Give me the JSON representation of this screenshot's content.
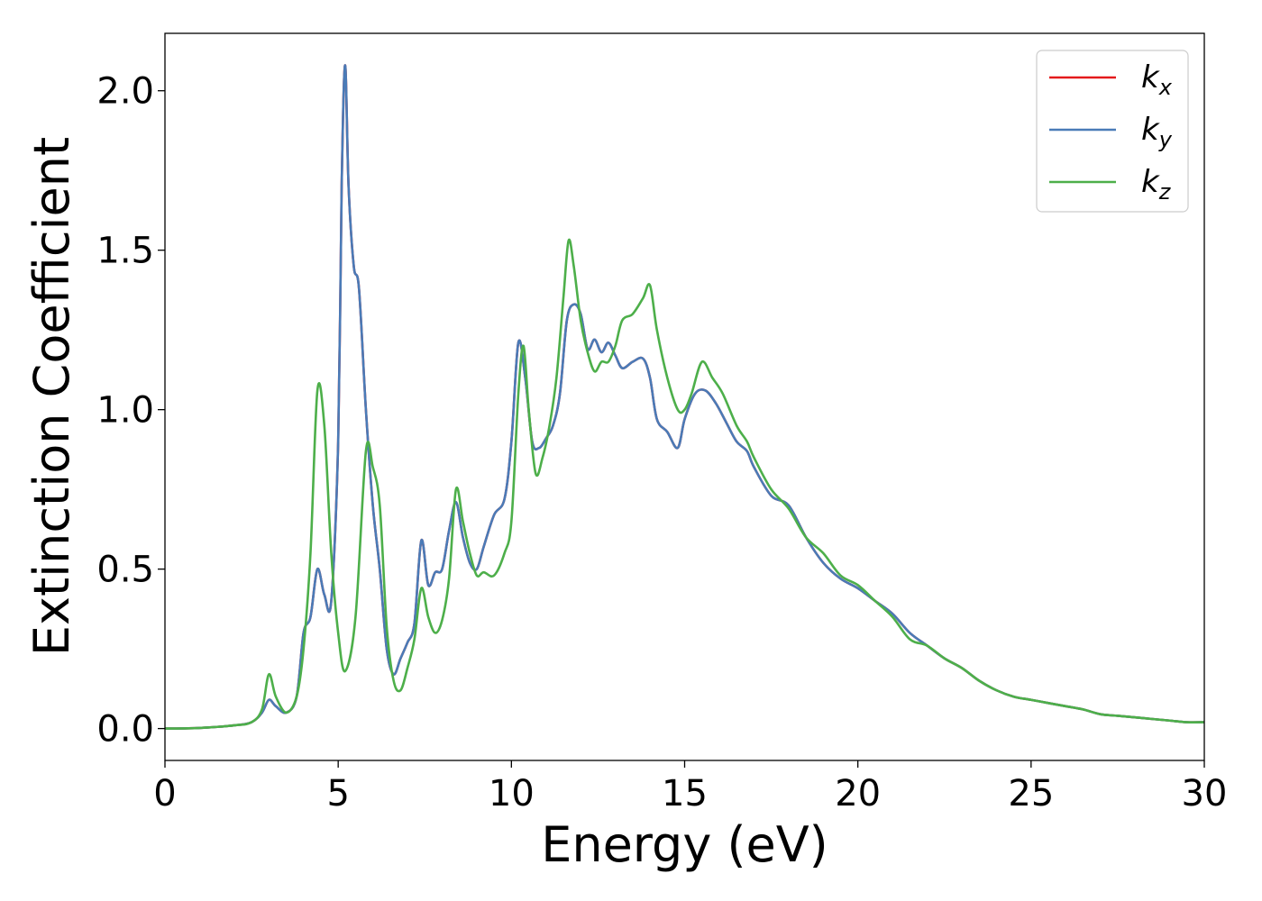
{
  "chart_data": {
    "type": "line",
    "xlabel": "Energy (eV)",
    "ylabel": "Extinction Coefficient",
    "xlim": [
      0,
      30
    ],
    "ylim": [
      -0.1,
      2.18
    ],
    "xticks": [
      0,
      5,
      10,
      15,
      20,
      25,
      30
    ],
    "yticks": [
      0.0,
      0.5,
      1.0,
      1.5,
      2.0
    ],
    "xtick_labels": [
      "0",
      "5",
      "10",
      "15",
      "20",
      "25",
      "30"
    ],
    "ytick_labels": [
      "0.0",
      "0.5",
      "1.0",
      "1.5",
      "2.0"
    ],
    "grid": false,
    "legend_position": "top-right",
    "series": [
      {
        "name": "k_x",
        "legend_base": "k",
        "legend_sub": "x",
        "color": "#e41a1c",
        "x": [
          0,
          1,
          2,
          2.5,
          2.8,
          3.0,
          3.2,
          3.5,
          3.8,
          4.0,
          4.2,
          4.4,
          4.6,
          4.8,
          5.0,
          5.1,
          5.2,
          5.3,
          5.45,
          5.6,
          5.8,
          6.0,
          6.2,
          6.4,
          6.6,
          6.8,
          7.0,
          7.2,
          7.4,
          7.6,
          7.8,
          8.0,
          8.2,
          8.4,
          8.6,
          8.8,
          9.0,
          9.2,
          9.5,
          9.8,
          10.0,
          10.2,
          10.4,
          10.6,
          10.8,
          11.0,
          11.2,
          11.4,
          11.6,
          11.8,
          12.0,
          12.2,
          12.4,
          12.6,
          12.8,
          13.0,
          13.2,
          13.5,
          13.8,
          14.0,
          14.2,
          14.5,
          14.8,
          15.0,
          15.3,
          15.6,
          15.9,
          16.2,
          16.5,
          16.8,
          17.0,
          17.5,
          18.0,
          18.5,
          19.0,
          19.5,
          20.0,
          20.5,
          21.0,
          21.5,
          22.0,
          22.5,
          23.0,
          23.5,
          24.0,
          24.5,
          25.0,
          25.5,
          26.0,
          26.5,
          27.0,
          27.5,
          28.0,
          28.5,
          29.0,
          29.5,
          30.0
        ],
        "y": [
          0.0,
          0.002,
          0.01,
          0.02,
          0.05,
          0.09,
          0.07,
          0.05,
          0.1,
          0.3,
          0.35,
          0.5,
          0.42,
          0.4,
          0.9,
          1.7,
          2.08,
          1.7,
          1.45,
          1.38,
          1.0,
          0.7,
          0.5,
          0.25,
          0.17,
          0.22,
          0.27,
          0.33,
          0.59,
          0.45,
          0.49,
          0.5,
          0.62,
          0.71,
          0.6,
          0.52,
          0.5,
          0.57,
          0.67,
          0.72,
          0.9,
          1.21,
          1.1,
          0.9,
          0.88,
          0.91,
          0.95,
          1.05,
          1.28,
          1.33,
          1.3,
          1.19,
          1.22,
          1.18,
          1.21,
          1.17,
          1.13,
          1.15,
          1.16,
          1.1,
          0.97,
          0.93,
          0.88,
          0.97,
          1.05,
          1.06,
          1.02,
          0.96,
          0.9,
          0.87,
          0.82,
          0.73,
          0.7,
          0.6,
          0.52,
          0.47,
          0.44,
          0.4,
          0.36,
          0.3,
          0.26,
          0.22,
          0.19,
          0.15,
          0.12,
          0.1,
          0.09,
          0.08,
          0.07,
          0.06,
          0.045,
          0.04,
          0.035,
          0.03,
          0.025,
          0.02,
          0.02
        ]
      },
      {
        "name": "k_y",
        "legend_base": "k",
        "legend_sub": "y",
        "color": "#4a7bb7",
        "x": [
          0,
          1,
          2,
          2.5,
          2.8,
          3.0,
          3.2,
          3.5,
          3.8,
          4.0,
          4.2,
          4.4,
          4.6,
          4.8,
          5.0,
          5.1,
          5.2,
          5.3,
          5.45,
          5.6,
          5.8,
          6.0,
          6.2,
          6.4,
          6.6,
          6.8,
          7.0,
          7.2,
          7.4,
          7.6,
          7.8,
          8.0,
          8.2,
          8.4,
          8.6,
          8.8,
          9.0,
          9.2,
          9.5,
          9.8,
          10.0,
          10.2,
          10.4,
          10.6,
          10.8,
          11.0,
          11.2,
          11.4,
          11.6,
          11.8,
          12.0,
          12.2,
          12.4,
          12.6,
          12.8,
          13.0,
          13.2,
          13.5,
          13.8,
          14.0,
          14.2,
          14.5,
          14.8,
          15.0,
          15.3,
          15.6,
          15.9,
          16.2,
          16.5,
          16.8,
          17.0,
          17.5,
          18.0,
          18.5,
          19.0,
          19.5,
          20.0,
          20.5,
          21.0,
          21.5,
          22.0,
          22.5,
          23.0,
          23.5,
          24.0,
          24.5,
          25.0,
          25.5,
          26.0,
          26.5,
          27.0,
          27.5,
          28.0,
          28.5,
          29.0,
          29.5,
          30.0
        ],
        "y": [
          0.0,
          0.002,
          0.01,
          0.02,
          0.05,
          0.09,
          0.07,
          0.05,
          0.1,
          0.3,
          0.35,
          0.5,
          0.42,
          0.4,
          0.9,
          1.7,
          2.08,
          1.7,
          1.45,
          1.38,
          1.0,
          0.7,
          0.5,
          0.25,
          0.17,
          0.22,
          0.27,
          0.33,
          0.59,
          0.45,
          0.49,
          0.5,
          0.62,
          0.71,
          0.6,
          0.52,
          0.5,
          0.57,
          0.67,
          0.72,
          0.9,
          1.21,
          1.1,
          0.9,
          0.88,
          0.91,
          0.95,
          1.05,
          1.28,
          1.33,
          1.3,
          1.19,
          1.22,
          1.18,
          1.21,
          1.17,
          1.13,
          1.15,
          1.16,
          1.1,
          0.97,
          0.93,
          0.88,
          0.97,
          1.05,
          1.06,
          1.02,
          0.96,
          0.9,
          0.87,
          0.82,
          0.73,
          0.7,
          0.6,
          0.52,
          0.47,
          0.44,
          0.4,
          0.36,
          0.3,
          0.26,
          0.22,
          0.19,
          0.15,
          0.12,
          0.1,
          0.09,
          0.08,
          0.07,
          0.06,
          0.045,
          0.04,
          0.035,
          0.03,
          0.025,
          0.02,
          0.02
        ]
      },
      {
        "name": "k_z",
        "legend_base": "k",
        "legend_sub": "z",
        "color": "#4daf4a",
        "x": [
          0,
          1,
          2,
          2.5,
          2.8,
          3.0,
          3.2,
          3.5,
          3.8,
          4.0,
          4.2,
          4.4,
          4.6,
          4.8,
          5.0,
          5.2,
          5.5,
          5.8,
          6.0,
          6.2,
          6.4,
          6.6,
          6.8,
          7.0,
          7.2,
          7.4,
          7.6,
          7.8,
          8.0,
          8.2,
          8.4,
          8.6,
          8.8,
          9.0,
          9.2,
          9.5,
          9.8,
          10.0,
          10.2,
          10.35,
          10.5,
          10.7,
          10.9,
          11.1,
          11.3,
          11.5,
          11.65,
          11.8,
          12.0,
          12.2,
          12.4,
          12.6,
          12.8,
          13.0,
          13.2,
          13.5,
          13.8,
          14.0,
          14.2,
          14.5,
          14.8,
          15.0,
          15.2,
          15.5,
          15.8,
          16.1,
          16.5,
          16.8,
          17.0,
          17.5,
          18.0,
          18.5,
          19.0,
          19.5,
          20.0,
          20.5,
          21.0,
          21.5,
          22.0,
          22.5,
          23.0,
          23.5,
          24.0,
          24.5,
          25.0,
          25.5,
          26.0,
          26.5,
          27.0,
          27.5,
          28.0,
          28.5,
          29.0,
          29.5,
          30.0
        ],
        "y": [
          0.0,
          0.002,
          0.01,
          0.02,
          0.06,
          0.17,
          0.1,
          0.05,
          0.1,
          0.25,
          0.55,
          1.06,
          0.95,
          0.55,
          0.3,
          0.18,
          0.35,
          0.87,
          0.82,
          0.7,
          0.32,
          0.15,
          0.12,
          0.19,
          0.28,
          0.44,
          0.35,
          0.3,
          0.34,
          0.47,
          0.75,
          0.65,
          0.55,
          0.48,
          0.49,
          0.48,
          0.55,
          0.65,
          1.05,
          1.2,
          1.0,
          0.8,
          0.85,
          0.95,
          1.1,
          1.35,
          1.53,
          1.45,
          1.28,
          1.18,
          1.12,
          1.15,
          1.15,
          1.2,
          1.28,
          1.3,
          1.35,
          1.39,
          1.25,
          1.1,
          1.0,
          1.0,
          1.05,
          1.15,
          1.1,
          1.05,
          0.95,
          0.9,
          0.85,
          0.75,
          0.69,
          0.6,
          0.55,
          0.48,
          0.45,
          0.4,
          0.35,
          0.28,
          0.26,
          0.22,
          0.19,
          0.15,
          0.12,
          0.1,
          0.09,
          0.08,
          0.07,
          0.06,
          0.045,
          0.04,
          0.035,
          0.03,
          0.025,
          0.02,
          0.02
        ]
      }
    ]
  }
}
